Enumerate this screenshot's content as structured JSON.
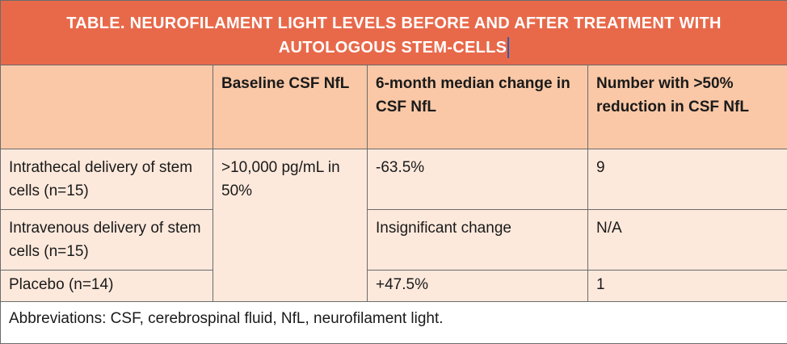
{
  "table": {
    "title_line1": "TABLE. NEUROFILAMENT LIGHT LEVELS BEFORE AND AFTER TREATMENT WITH",
    "title_line2": "AUTOLOGOUS STEM-CELLS",
    "headers": [
      "",
      "Baseline CSF NfL",
      "6-month median change in CSF NfL",
      "Number with >50% reduction in CSF NfL"
    ],
    "rows": [
      {
        "group": "Intrathecal delivery of stem cells (n=15)",
        "change": "-63.5%",
        "number": "9"
      },
      {
        "group": "Intravenous delivery of stem cells (n=15)",
        "change": "Insignificant change",
        "number": "N/A"
      },
      {
        "group": "Placebo (n=14)",
        "change": "+47.5%",
        "number": "1"
      }
    ],
    "baseline_shared": ">10,000 pg/mL in 50%",
    "footnote": "Abbreviations: CSF, cerebrospinal fluid, NfL, neurofilament light."
  },
  "colors": {
    "title_bg": "#e8694a",
    "header_bg": "#fac8a6",
    "row_bg": "#fde9dc",
    "border": "#6b6b6b"
  }
}
